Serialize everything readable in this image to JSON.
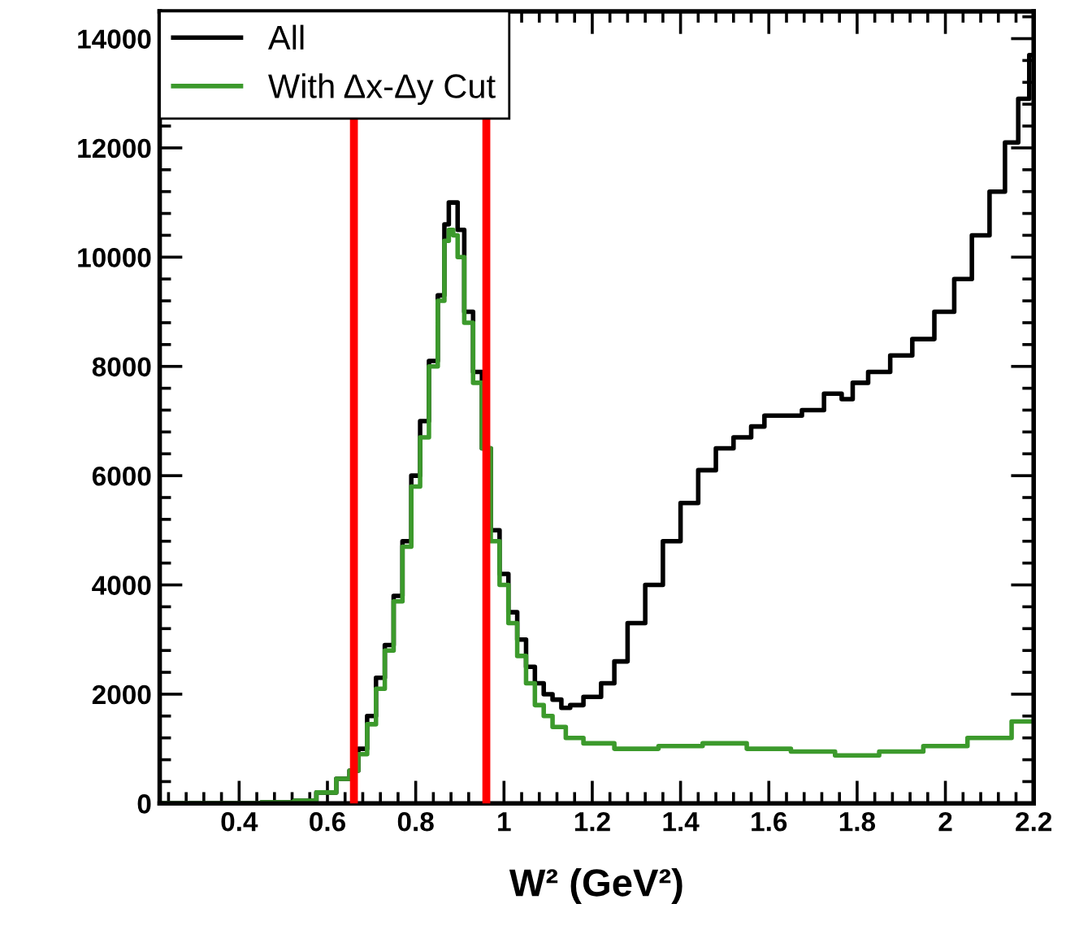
{
  "chart_data": {
    "type": "step",
    "xlabel": "W² (GeV²)",
    "xlim": [
      0.22,
      2.2
    ],
    "ylim": [
      0,
      14500
    ],
    "xticks": [
      0.4,
      0.6,
      0.8,
      1,
      1.2,
      1.4,
      1.6,
      1.8,
      2,
      2.2
    ],
    "yticks": [
      0,
      2000,
      4000,
      6000,
      8000,
      10000,
      12000,
      14000
    ],
    "grid": false,
    "legend": "top left",
    "line_style": "solid",
    "marker": "none",
    "series": [
      {
        "name": "All",
        "color": "#000000",
        "x": [
          0.22,
          0.3,
          0.4,
          0.5,
          0.55,
          0.6,
          0.64,
          0.66,
          0.68,
          0.7,
          0.72,
          0.74,
          0.76,
          0.78,
          0.8,
          0.82,
          0.84,
          0.86,
          0.87,
          0.88,
          0.89,
          0.9,
          0.92,
          0.94,
          0.96,
          0.98,
          1.0,
          1.02,
          1.04,
          1.06,
          1.08,
          1.1,
          1.12,
          1.14,
          1.16,
          1.2,
          1.24,
          1.26,
          1.3,
          1.34,
          1.38,
          1.42,
          1.46,
          1.5,
          1.54,
          1.58,
          1.6,
          1.65,
          1.7,
          1.75,
          1.78,
          1.8,
          1.85,
          1.9,
          1.95,
          2.0,
          2.04,
          2.08,
          2.12,
          2.15,
          2.18,
          2.2
        ],
        "values": [
          0,
          0,
          0,
          20,
          50,
          200,
          450,
          600,
          1000,
          1600,
          2300,
          2900,
          3800,
          4800,
          6000,
          7000,
          8100,
          9300,
          10600,
          11000,
          11000,
          10500,
          9000,
          7900,
          6500,
          5000,
          4200,
          3500,
          3000,
          2500,
          2200,
          2000,
          1900,
          1750,
          1800,
          1950,
          2200,
          2600,
          3300,
          4000,
          4800,
          5500,
          6100,
          6500,
          6700,
          6900,
          7100,
          7100,
          7200,
          7500,
          7400,
          7700,
          7900,
          8200,
          8500,
          9000,
          9600,
          10400,
          11200,
          12100,
          12900,
          13700
        ]
      },
      {
        "name": "With Δx-Δy Cut",
        "color": "#3c9a2c",
        "x": [
          0.22,
          0.3,
          0.4,
          0.5,
          0.55,
          0.6,
          0.64,
          0.66,
          0.68,
          0.7,
          0.72,
          0.74,
          0.76,
          0.78,
          0.8,
          0.82,
          0.84,
          0.86,
          0.87,
          0.88,
          0.89,
          0.9,
          0.92,
          0.94,
          0.96,
          0.98,
          1.0,
          1.02,
          1.04,
          1.06,
          1.08,
          1.1,
          1.12,
          1.16,
          1.2,
          1.3,
          1.4,
          1.5,
          1.6,
          1.7,
          1.8,
          1.9,
          2.0,
          2.1,
          2.2
        ],
        "values": [
          0,
          0,
          0,
          20,
          50,
          200,
          450,
          600,
          900,
          1450,
          2100,
          2800,
          3700,
          4700,
          5800,
          6700,
          8000,
          9200,
          10300,
          10500,
          10400,
          10000,
          8800,
          7700,
          6500,
          4800,
          4000,
          3300,
          2700,
          2200,
          1800,
          1600,
          1400,
          1200,
          1100,
          1000,
          1050,
          1100,
          1000,
          950,
          880,
          950,
          1050,
          1200,
          1500
        ]
      }
    ],
    "ref_lines": [
      {
        "axis": "x",
        "value": 0.66,
        "color": "#ff0000"
      },
      {
        "axis": "x",
        "value": 0.96,
        "color": "#ff0000"
      }
    ]
  }
}
